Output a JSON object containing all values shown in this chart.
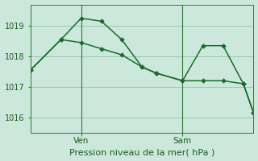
{
  "background_color": "#cce8dc",
  "grid_color": "#9dc4b4",
  "line_color": "#1a6b2a",
  "marker_color": "#1a6b2a",
  "xlabel": "Pression niveau de la mer( hPa )",
  "ylim": [
    1015.5,
    1019.7
  ],
  "yticks": [
    1016,
    1017,
    1018,
    1019
  ],
  "xlim": [
    0,
    11
  ],
  "ven_x": 2.5,
  "sam_x": 7.5,
  "line1_x": [
    0,
    1.5,
    2.5,
    3.5,
    4.5,
    5.5,
    6.2,
    7.5,
    8.5,
    9.5,
    10.5,
    11
  ],
  "line1_y": [
    1017.55,
    1018.55,
    1019.25,
    1019.15,
    1018.55,
    1017.65,
    1017.45,
    1017.2,
    1018.35,
    1018.35,
    1017.1,
    1016.15
  ],
  "line2_x": [
    0,
    1.5,
    2.5,
    3.5,
    4.5,
    5.5,
    6.2,
    7.5,
    8.5,
    9.5,
    10.5,
    11
  ],
  "line2_y": [
    1017.55,
    1018.55,
    1018.45,
    1018.25,
    1018.05,
    1017.65,
    1017.45,
    1017.2,
    1017.2,
    1017.2,
    1017.1,
    1016.15
  ],
  "ven_label": "Ven",
  "sam_label": "Sam",
  "label_color": "#1a5c20",
  "tick_color": "#1a5c20",
  "axis_color": "#2d7a3a",
  "xlabel_fontsize": 8,
  "ytick_fontsize": 7,
  "day_label_fontsize": 7.5
}
